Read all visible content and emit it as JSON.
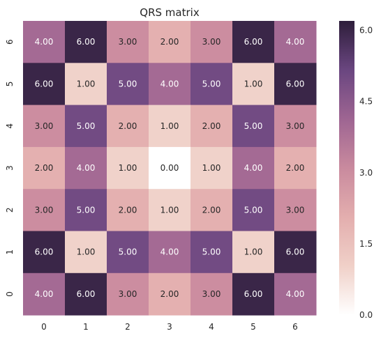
{
  "chart_data": {
    "type": "heatmap",
    "title": "QRS matrix",
    "xlabel": "",
    "ylabel": "",
    "x_categories": [
      "0",
      "1",
      "2",
      "3",
      "4",
      "5",
      "6"
    ],
    "y_categories": [
      "6",
      "5",
      "4",
      "3",
      "2",
      "1",
      "0"
    ],
    "values": [
      [
        4,
        6,
        3,
        2,
        3,
        6,
        4
      ],
      [
        6,
        1,
        5,
        4,
        5,
        1,
        6
      ],
      [
        3,
        5,
        2,
        1,
        2,
        5,
        3
      ],
      [
        2,
        4,
        1,
        0,
        1,
        4,
        2
      ],
      [
        3,
        5,
        2,
        1,
        2,
        5,
        3
      ],
      [
        6,
        1,
        5,
        4,
        5,
        1,
        6
      ],
      [
        4,
        6,
        3,
        2,
        3,
        6,
        4
      ]
    ],
    "value_format": "0.00",
    "colorbar": {
      "range": [
        0,
        6.2
      ],
      "ticks": [
        "0.0",
        "1.5",
        "3.0",
        "4.5",
        "6.0"
      ]
    },
    "colors": [
      "#ffffff",
      "#f0d0c8",
      "#e3aeae",
      "#c98a9e",
      "#9e6592",
      "#6a4680",
      "#2e1e3b"
    ],
    "grid": false,
    "legend": "colorbar-right"
  }
}
